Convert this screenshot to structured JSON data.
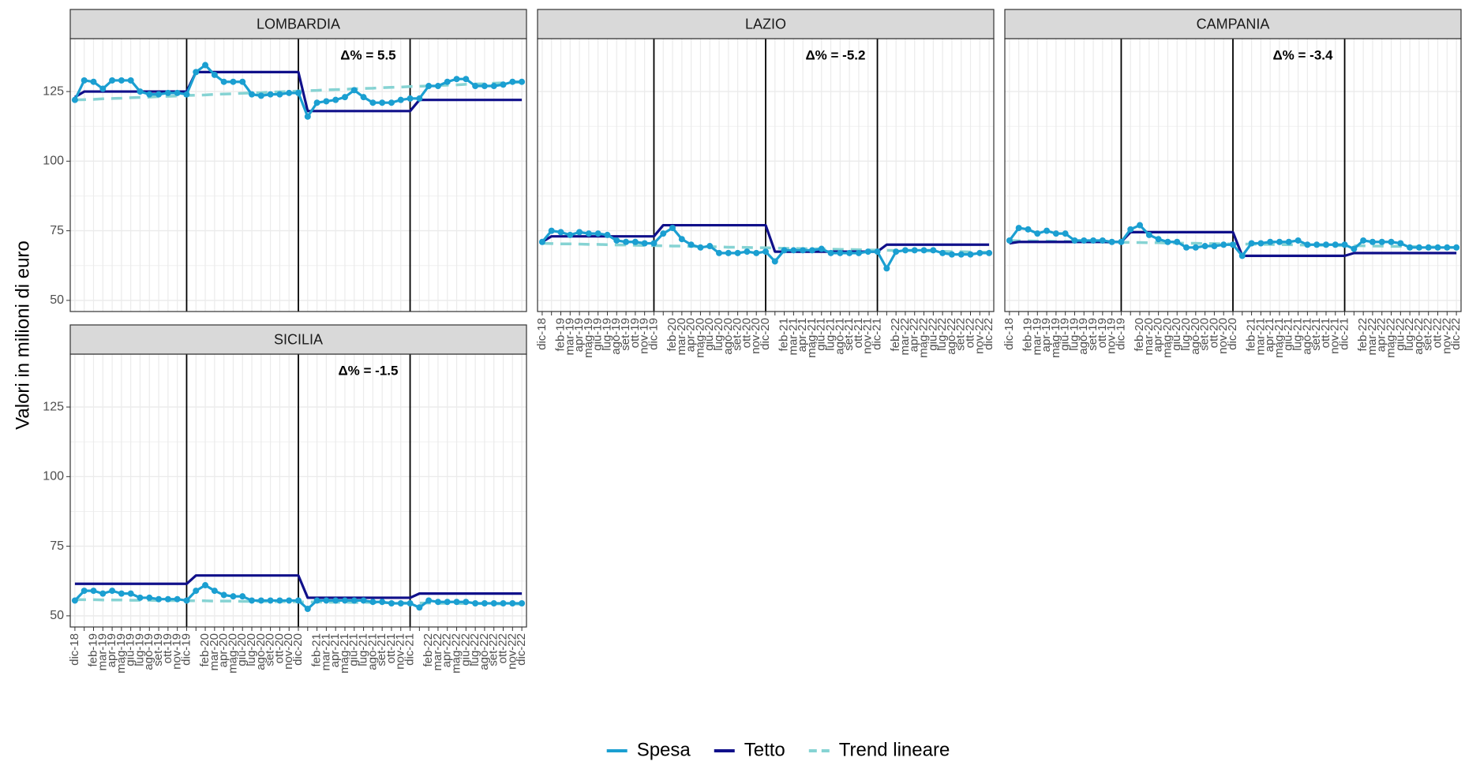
{
  "y_label": "Valori in milioni di euro",
  "chart_data": [
    {
      "type": "line",
      "title": "LOMBARDIA",
      "annotation": "Δ% = 5.5",
      "categories": [
        "dic-18",
        null,
        "feb-19",
        "mar-19",
        "apr-19",
        "mag-19",
        "giu-19",
        "lug-19",
        "ago-19",
        "set-19",
        "ott-19",
        "nov-19",
        "dic-19",
        null,
        "feb-20",
        "mar-20",
        "apr-20",
        "mag-20",
        "giu-20",
        "lug-20",
        "ago-20",
        "set-20",
        "ott-20",
        "nov-20",
        "dic-20",
        null,
        "feb-21",
        "mar-21",
        "apr-21",
        "mag-21",
        "giu-21",
        "lug-21",
        "ago-21",
        "set-21",
        "ott-21",
        "nov-21",
        "dic-21",
        null,
        "feb-22",
        "mar-22",
        "apr-22",
        "mag-22",
        "giu-22",
        "lug-22",
        "ago-22",
        "set-22",
        "ott-22",
        "nov-22",
        "dic-22"
      ],
      "ylim": [
        46,
        144
      ],
      "yticks": [
        50,
        75,
        100,
        125
      ],
      "grid": true,
      "vlines": [
        "dic-19",
        "dic-20",
        "dic-21"
      ],
      "series": [
        {
          "name": "Spesa",
          "color": "#1b9fd1",
          "markers": true,
          "values": [
            122,
            129,
            128.5,
            126,
            129,
            129,
            129,
            125,
            124,
            124,
            124.5,
            124.5,
            124,
            132,
            134.5,
            131,
            128.5,
            128.5,
            128.5,
            124,
            123.5,
            124,
            124,
            124.5,
            124.5,
            116,
            121,
            121.5,
            122,
            123,
            125.5,
            123,
            121,
            121,
            121,
            122,
            122.5,
            122.5,
            127,
            127,
            128.5,
            129.5,
            129.5,
            127,
            127,
            127,
            127.5,
            128.5,
            128.5
          ]
        },
        {
          "name": "Tetto",
          "color": "#10108a",
          "values": [
            123,
            125,
            125,
            125,
            125,
            125,
            125,
            125,
            125,
            125,
            125,
            125,
            125,
            132,
            132,
            132,
            132,
            132,
            132,
            132,
            132,
            132,
            132,
            132,
            132,
            118,
            118,
            118,
            118,
            118,
            118,
            118,
            118,
            118,
            118,
            118,
            118,
            122,
            122,
            122,
            122,
            122,
            122,
            122,
            122,
            122,
            122,
            122,
            122
          ]
        },
        {
          "name": "Trend lineare",
          "color": "#86d3d3",
          "dashed": true,
          "values": [
            122.0,
            122.1,
            122.2,
            122.4,
            122.5,
            122.6,
            122.8,
            122.9,
            123.0,
            123.2,
            123.3,
            123.4,
            123.6,
            123.7,
            123.8,
            124.0,
            124.1,
            124.2,
            124.4,
            124.5,
            124.6,
            124.8,
            124.9,
            125.0,
            125.2,
            125.3,
            125.4,
            125.6,
            125.7,
            125.8,
            126.0,
            126.1,
            126.2,
            126.4,
            126.5,
            126.6,
            126.8,
            126.9,
            127.0,
            127.2,
            127.3,
            127.4,
            127.6,
            127.7,
            127.8,
            128.0,
            128.1,
            128.2,
            128.4
          ]
        }
      ]
    },
    {
      "type": "line",
      "title": "LAZIO",
      "annotation": "Δ% = -5.2",
      "categories": [
        "dic-18",
        null,
        "feb-19",
        "mar-19",
        "apr-19",
        "mag-19",
        "giu-19",
        "lug-19",
        "ago-19",
        "set-19",
        "ott-19",
        "nov-19",
        "dic-19",
        null,
        "feb-20",
        "mar-20",
        "apr-20",
        "mag-20",
        "giu-20",
        "lug-20",
        "ago-20",
        "set-20",
        "ott-20",
        "nov-20",
        "dic-20",
        null,
        "feb-21",
        "mar-21",
        "apr-21",
        "mag-21",
        "giu-21",
        "lug-21",
        "ago-21",
        "set-21",
        "ott-21",
        "nov-21",
        "dic-21",
        null,
        "feb-22",
        "mar-22",
        "apr-22",
        "mag-22",
        "giu-22",
        "lug-22",
        "ago-22",
        "set-22",
        "ott-22",
        "nov-22",
        "dic-22"
      ],
      "ylim": [
        46,
        144
      ],
      "yticks": [
        50,
        75,
        100,
        125
      ],
      "grid": true,
      "vlines": [
        "dic-19",
        "dic-20",
        "dic-21"
      ],
      "series": [
        {
          "name": "Spesa",
          "color": "#1b9fd1",
          "markers": true,
          "values": [
            71,
            75,
            74.5,
            73.5,
            74.5,
            74,
            74,
            73.5,
            71.5,
            71,
            71,
            70.5,
            70.5,
            74,
            76,
            72,
            70,
            69,
            69.5,
            67,
            67,
            67,
            67.5,
            67,
            67.5,
            64,
            68,
            68,
            68,
            68,
            68.5,
            67,
            67,
            67,
            67,
            67.5,
            67.5,
            61.5,
            67.5,
            68,
            68,
            68,
            68,
            67,
            66.5,
            66.5,
            66.5,
            67,
            67
          ]
        },
        {
          "name": "Tetto",
          "color": "#10108a",
          "values": [
            71,
            73,
            73,
            73,
            73,
            73,
            73,
            73,
            73,
            73,
            73,
            73,
            73,
            77,
            77,
            77,
            77,
            77,
            77,
            77,
            77,
            77,
            77,
            77,
            77,
            67.5,
            67.5,
            67.5,
            67.5,
            67.5,
            67.5,
            67.5,
            67.5,
            67.5,
            67.5,
            67.5,
            67.5,
            70,
            70,
            70,
            70,
            70,
            70,
            70,
            70,
            70,
            70,
            70,
            70
          ]
        },
        {
          "name": "Trend lineare",
          "color": "#86d3d3",
          "dashed": true,
          "values": [
            70.5,
            70.4,
            70.3,
            70.3,
            70.2,
            70.1,
            70.1,
            70.0,
            69.9,
            69.9,
            69.8,
            69.7,
            69.7,
            69.6,
            69.5,
            69.5,
            69.4,
            69.3,
            69.3,
            69.2,
            69.1,
            69.1,
            69.0,
            68.9,
            68.9,
            68.8,
            68.7,
            68.7,
            68.6,
            68.5,
            68.5,
            68.4,
            68.3,
            68.3,
            68.2,
            68.1,
            68.1,
            68.0,
            67.9,
            67.9,
            67.8,
            67.7,
            67.7,
            67.6,
            67.5,
            67.5,
            67.4,
            67.3,
            67.3
          ]
        }
      ]
    },
    {
      "type": "line",
      "title": "CAMPANIA",
      "annotation": "Δ% = -3.4",
      "categories": [
        "dic-18",
        null,
        "feb-19",
        "mar-19",
        "apr-19",
        "mag-19",
        "giu-19",
        "lug-19",
        "ago-19",
        "set-19",
        "ott-19",
        "nov-19",
        "dic-19",
        null,
        "feb-20",
        "mar-20",
        "apr-20",
        "mag-20",
        "giu-20",
        "lug-20",
        "ago-20",
        "set-20",
        "ott-20",
        "nov-20",
        "dic-20",
        null,
        "feb-21",
        "mar-21",
        "apr-21",
        "mag-21",
        "giu-21",
        "lug-21",
        "ago-21",
        "set-21",
        "ott-21",
        "nov-21",
        "dic-21",
        null,
        "feb-22",
        "mar-22",
        "apr-22",
        "mag-22",
        "giu-22",
        "lug-22",
        "ago-22",
        "set-22",
        "ott-22",
        "nov-22",
        "dic-22"
      ],
      "ylim": [
        46,
        144
      ],
      "yticks": [
        50,
        75,
        100,
        125
      ],
      "grid": true,
      "vlines": [
        "dic-19",
        "dic-20",
        "dic-21"
      ],
      "series": [
        {
          "name": "Spesa",
          "color": "#1b9fd1",
          "markers": true,
          "values": [
            71.5,
            76,
            75.5,
            74,
            75,
            74,
            74,
            71.5,
            71.5,
            71.5,
            71.5,
            71,
            71,
            75.5,
            77,
            73.5,
            72,
            71,
            71,
            69,
            69,
            69.5,
            69.5,
            70,
            70,
            66,
            70.5,
            70.5,
            71,
            71,
            71,
            71.5,
            70,
            70,
            70,
            70,
            70,
            68.5,
            71.5,
            71,
            71,
            71,
            70.5,
            69,
            69,
            69,
            69,
            69,
            69
          ]
        },
        {
          "name": "Tetto",
          "color": "#10108a",
          "values": [
            70.5,
            71,
            71,
            71,
            71,
            71,
            71,
            71,
            71,
            71,
            71,
            71,
            71,
            74.5,
            74.5,
            74.5,
            74.5,
            74.5,
            74.5,
            74.5,
            74.5,
            74.5,
            74.5,
            74.5,
            74.5,
            66,
            66,
            66,
            66,
            66,
            66,
            66,
            66,
            66,
            66,
            66,
            66,
            67,
            67,
            67,
            67,
            67,
            67,
            67,
            67,
            67,
            67,
            67,
            67
          ]
        },
        {
          "name": "Trend lineare",
          "color": "#86d3d3",
          "dashed": true,
          "values": [
            71.5,
            71.4,
            71.4,
            71.3,
            71.3,
            71.2,
            71.2,
            71.1,
            71.1,
            71.0,
            71.0,
            70.9,
            70.9,
            70.8,
            70.8,
            70.7,
            70.7,
            70.6,
            70.6,
            70.5,
            70.5,
            70.4,
            70.4,
            70.3,
            70.3,
            70.2,
            70.2,
            70.1,
            70.1,
            70.0,
            70.0,
            69.9,
            69.9,
            69.8,
            69.8,
            69.7,
            69.7,
            69.6,
            69.6,
            69.5,
            69.5,
            69.4,
            69.4,
            69.3,
            69.3,
            69.2,
            69.2,
            69.1,
            69.0
          ]
        }
      ]
    },
    {
      "type": "line",
      "title": "SICILIA",
      "annotation": "Δ% = -1.5",
      "categories": [
        "dic-18",
        null,
        "feb-19",
        "mar-19",
        "apr-19",
        "mag-19",
        "giu-19",
        "lug-19",
        "ago-19",
        "set-19",
        "ott-19",
        "nov-19",
        "dic-19",
        null,
        "feb-20",
        "mar-20",
        "apr-20",
        "mag-20",
        "giu-20",
        "lug-20",
        "ago-20",
        "set-20",
        "ott-20",
        "nov-20",
        "dic-20",
        null,
        "feb-21",
        "mar-21",
        "apr-21",
        "mag-21",
        "giu-21",
        "lug-21",
        "ago-21",
        "set-21",
        "ott-21",
        "nov-21",
        "dic-21",
        null,
        "feb-22",
        "mar-22",
        "apr-22",
        "mag-22",
        "giu-22",
        "lug-22",
        "ago-22",
        "set-22",
        "ott-22",
        "nov-22",
        "dic-22"
      ],
      "ylim": [
        46,
        144
      ],
      "yticks": [
        50,
        75,
        100,
        125
      ],
      "grid": true,
      "vlines": [
        "dic-19",
        "dic-20",
        "dic-21"
      ],
      "series": [
        {
          "name": "Spesa",
          "color": "#1b9fd1",
          "markers": true,
          "values": [
            55.5,
            59,
            59,
            58,
            59,
            58,
            58,
            56.5,
            56.5,
            56,
            56,
            56,
            55.5,
            59,
            61,
            59,
            57.5,
            57,
            57,
            55.5,
            55.5,
            55.5,
            55.5,
            55.5,
            55.5,
            52.5,
            55.5,
            55.5,
            55.5,
            55.5,
            55.5,
            55.5,
            55,
            55,
            54.5,
            54.5,
            54.5,
            53,
            55.5,
            55,
            55,
            55,
            55,
            54.5,
            54.5,
            54.5,
            54.5,
            54.5,
            54.5
          ]
        },
        {
          "name": "Tetto",
          "color": "#10108a",
          "values": [
            61.5,
            61.5,
            61.5,
            61.5,
            61.5,
            61.5,
            61.5,
            61.5,
            61.5,
            61.5,
            61.5,
            61.5,
            61.5,
            64.5,
            64.5,
            64.5,
            64.5,
            64.5,
            64.5,
            64.5,
            64.5,
            64.5,
            64.5,
            64.5,
            64.5,
            56.5,
            56.5,
            56.5,
            56.5,
            56.5,
            56.5,
            56.5,
            56.5,
            56.5,
            56.5,
            56.5,
            56.5,
            58,
            58,
            58,
            58,
            58,
            58,
            58,
            58,
            58,
            58,
            58,
            58
          ]
        },
        {
          "name": "Trend lineare",
          "color": "#86d3d3",
          "dashed": true,
          "values": [
            55.8,
            55.8,
            55.8,
            55.7,
            55.7,
            55.7,
            55.6,
            55.6,
            55.6,
            55.5,
            55.5,
            55.5,
            55.4,
            55.4,
            55.4,
            55.3,
            55.3,
            55.3,
            55.2,
            55.2,
            55.2,
            55.1,
            55.1,
            55.1,
            55.0,
            55.0,
            55.0,
            54.9,
            54.9,
            54.9,
            54.8,
            54.8,
            54.8,
            54.7,
            54.7,
            54.7,
            54.6,
            54.6,
            54.6,
            54.5,
            54.5,
            54.5,
            54.4,
            54.4,
            54.4,
            54.3,
            54.3,
            54.3,
            54.2
          ]
        }
      ]
    }
  ]
}
